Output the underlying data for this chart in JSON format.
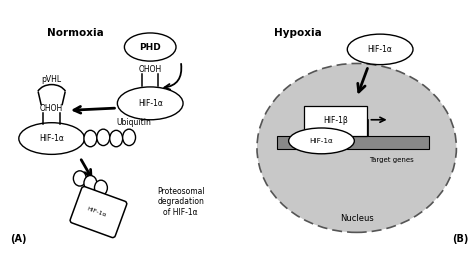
{
  "bg_color": "#ffffff",
  "panel_A_label": "Normoxia",
  "panel_B_label": "Hypoxia",
  "label_A": "(A)",
  "label_B": "(B)",
  "nucleus_color": "#c0c0c0",
  "nucleus_label": "Nucleus",
  "target_genes_label": "Target genes",
  "ubiquitin_label": "Ubiquitin",
  "proteasomal_label": "Proteosomal\ndegradation\nof HIF-1α",
  "pvhl_label": "pVHL",
  "phd_label": "PHD",
  "hif1a_label": "HIF-1α",
  "hif1b_label": "HIF-1β",
  "oh_label": "OHOH"
}
